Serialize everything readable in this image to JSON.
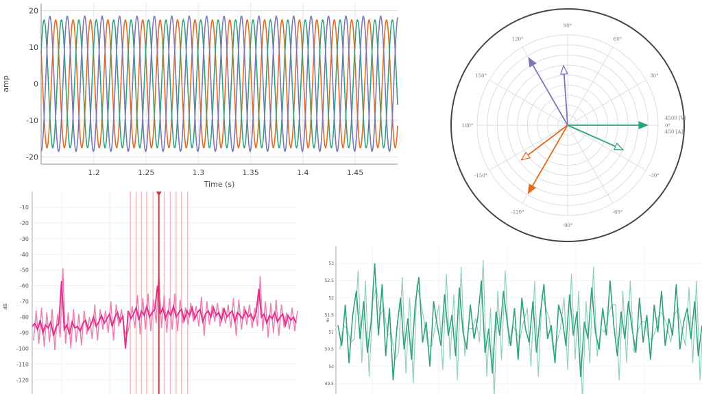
{
  "chart_data": [
    {
      "type": "line",
      "title": "",
      "xlabel": "Time (s)",
      "ylabel": "amp",
      "xlim": [
        1.1495,
        1.4907
      ],
      "ylim": [
        -22,
        22
      ],
      "grid": true,
      "xticks": [
        "1.2",
        "1.25",
        "1.3",
        "1.35",
        "1.4",
        "1.45"
      ],
      "yticks": [
        "20",
        "10",
        "0",
        "-10",
        "-20"
      ],
      "series": [
        {
          "color": "#e8691c",
          "amplitude": 17.5,
          "frequency_hz": 60,
          "phase_deg": 160
        },
        {
          "color": "#2ea27e",
          "amplitude": 17.5,
          "frequency_hz": 60,
          "phase_deg": 40
        },
        {
          "color": "#7b76b8",
          "amplitude": 18.5,
          "frequency_hz": 60,
          "phase_deg": -80
        }
      ]
    },
    {
      "type": "polar",
      "title": "",
      "radial_max_labels": [
        "4500 [V]",
        "450 [A]"
      ],
      "angle_labels": [
        "0°",
        "30°",
        "60°",
        "90°",
        "120°",
        "150°",
        "180°",
        "-150°",
        "-120°",
        "-90°",
        "-60°",
        "-30°"
      ],
      "phasors": [
        {
          "color": "#2ea27e",
          "kind": "voltage",
          "angle_deg": 0,
          "magnitude_fraction": 0.88
        },
        {
          "color": "#7b76b8",
          "kind": "voltage",
          "angle_deg": 120,
          "magnitude_fraction": 0.86
        },
        {
          "color": "#e8691c",
          "kind": "voltage",
          "angle_deg": -120,
          "magnitude_fraction": 0.87
        },
        {
          "color": "#2ea27e",
          "kind": "current",
          "angle_deg": -24,
          "magnitude_fraction": 0.67
        },
        {
          "color": "#7b76b8",
          "kind": "current",
          "angle_deg": 94,
          "magnitude_fraction": 0.66
        },
        {
          "color": "#e8691c",
          "kind": "current",
          "angle_deg": -143,
          "magnitude_fraction": 0.64
        }
      ]
    },
    {
      "type": "line",
      "title": "",
      "ylabel": "dB",
      "ylim": [
        -129,
        0
      ],
      "color": "#e2338c",
      "marker_color": "#d9334f",
      "marker_index": 47.5,
      "harmonic_line_indices": [
        36.8,
        39,
        41,
        43,
        45.3,
        49.5,
        51.8,
        54,
        56,
        58.3
      ],
      "yticks": [
        "-10",
        "-20",
        "-30",
        "-40",
        "-50",
        "-60",
        "-70",
        "-80",
        "-90",
        "-100",
        "-110",
        "-120"
      ],
      "values": [
        -86,
        -84,
        -88,
        -82,
        -90,
        -85,
        -87,
        -83,
        -92,
        -86,
        -84,
        -57,
        -88,
        -85,
        -91,
        -83,
        -87,
        -86,
        -89,
        -84,
        -82,
        -88,
        -85,
        -80,
        -86,
        -83,
        -79,
        -84,
        -81,
        -78,
        -86,
        -80,
        -77,
        -83,
        -79,
        -100,
        -76,
        -81,
        -78,
        -74,
        -82,
        -76,
        -79,
        -73,
        -80,
        -77,
        -75,
        -60,
        -78,
        -74,
        -81,
        -76,
        -79,
        -73,
        -80,
        -77,
        -75,
        -82,
        -76,
        -79,
        -74,
        -81,
        -77,
        -75,
        -83,
        -78,
        -76,
        -80,
        -74,
        -79,
        -77,
        -82,
        -75,
        -80,
        -78,
        -76,
        -83,
        -77,
        -79,
        -81,
        -76,
        -80,
        -78,
        -82,
        -77,
        -62,
        -80,
        -78,
        -84,
        -79,
        -81,
        -77,
        -83,
        -80,
        -78,
        -85,
        -79,
        -82,
        -80,
        -84
      ]
    },
    {
      "type": "line",
      "title": "",
      "ylabel": "Hz",
      "ylim": [
        49.2,
        53.5
      ],
      "color": "#2ea27e",
      "yticks": [
        "53",
        "52.5",
        "52",
        "51.5",
        "51",
        "50.5",
        "50",
        "49.5"
      ],
      "values": [
        51.2,
        50.6,
        51.8,
        50.1,
        51.5,
        52.2,
        50.8,
        51.9,
        50.4,
        51.3,
        53,
        50.9,
        52.4,
        50.3,
        51.7,
        49.6,
        51.1,
        52,
        50.5,
        51.4,
        50.2,
        51.8,
        52.6,
        50.7,
        51.3,
        50,
        51.9,
        51.2,
        50.6,
        52.1,
        50.9,
        51.5,
        50.3,
        52.3,
        51,
        50.5,
        51.8,
        50.8,
        51.4,
        52.5,
        50.4,
        51.1,
        49.8,
        51.6,
        50.9,
        52.2,
        51.3,
        50.6,
        51.7,
        50.2,
        52,
        51.1,
        50.7,
        51.9,
        50.4,
        51.5,
        52.4,
        50.8,
        51.2,
        50.1,
        51.8,
        51.4,
        50.6,
        52.1,
        50.9,
        51.6,
        49.7,
        51.3,
        50.8,
        52.3,
        51,
        50.5,
        51.7,
        50.9,
        52.5,
        51.2,
        50.3,
        51.6,
        50.8,
        51.9,
        51.1,
        50.4,
        52,
        50.7,
        51.5,
        50.2,
        51.8,
        51,
        52.2,
        50.6,
        51.4,
        50.9,
        52.4,
        50.5,
        51.3,
        51.7,
        50.8,
        51.9,
        50.3,
        51.2
      ]
    }
  ]
}
